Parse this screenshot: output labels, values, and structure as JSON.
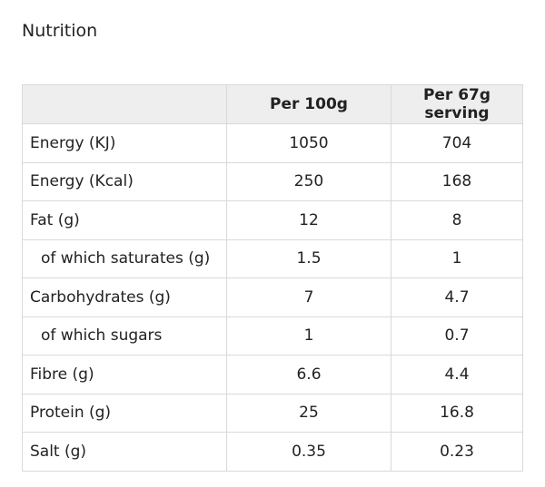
{
  "title": "Nutrition",
  "table": {
    "headers": [
      "",
      "Per 100g",
      "Per 67g serving"
    ],
    "rows": [
      {
        "label": "Energy (KJ)",
        "per100": "1050",
        "perServing": "704",
        "indent": false
      },
      {
        "label": "Energy (Kcal)",
        "per100": "250",
        "perServing": "168",
        "indent": false
      },
      {
        "label": "Fat (g)",
        "per100": "12",
        "perServing": "8",
        "indent": false
      },
      {
        "label": "of which saturates (g)",
        "per100": "1.5",
        "perServing": "1",
        "indent": true
      },
      {
        "label": "Carbohydrates (g)",
        "per100": "7",
        "perServing": "4.7",
        "indent": false
      },
      {
        "label": "of which sugars",
        "per100": "1",
        "perServing": "0.7",
        "indent": true
      },
      {
        "label": "Fibre (g)",
        "per100": "6.6",
        "perServing": "4.4",
        "indent": false
      },
      {
        "label": "Protein (g)",
        "per100": "25",
        "perServing": "16.8",
        "indent": false
      },
      {
        "label": "Salt (g)",
        "per100": "0.35",
        "perServing": "0.23",
        "indent": false
      }
    ]
  }
}
